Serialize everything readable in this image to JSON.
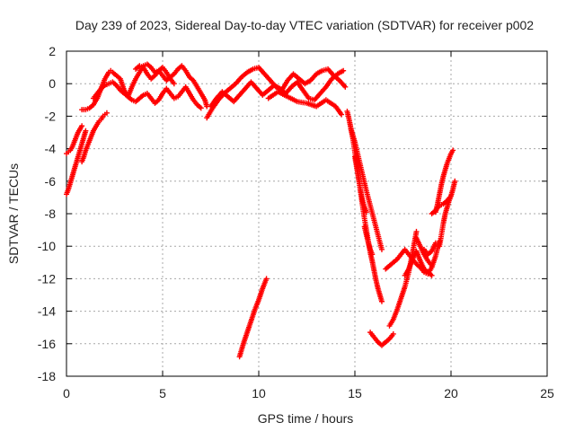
{
  "chart_data": {
    "type": "scatter",
    "title": "Day 239 of 2023, Sidereal Day-to-day VTEC variation (SDTVAR) for receiver p002",
    "xlabel": "GPS time / hours",
    "ylabel": "SDTVAR / TECUs",
    "xlim": [
      0,
      25
    ],
    "ylim": [
      -18,
      2
    ],
    "xticks": [
      0,
      5,
      10,
      15,
      20,
      25
    ],
    "yticks": [
      2,
      0,
      -2,
      -4,
      -6,
      -8,
      -10,
      -12,
      -14,
      -16,
      -18
    ],
    "grid": true,
    "marker": "plus",
    "color": "#ff0000",
    "series": [
      {
        "x": [
          0.0,
          0.1,
          0.2,
          0.3,
          0.4,
          0.5,
          0.6,
          0.7,
          0.8,
          0.9,
          1.0
        ],
        "y": [
          -6.8,
          -6.5,
          -6.1,
          -5.7,
          -5.3,
          -4.9,
          -4.5,
          -4.1,
          -3.7,
          -3.3,
          -2.9
        ]
      },
      {
        "x": [
          0.0,
          0.1,
          0.2,
          0.3,
          0.4,
          0.5,
          0.6,
          0.7,
          0.8
        ],
        "y": [
          -4.3,
          -4.2,
          -4.1,
          -3.9,
          -3.6,
          -3.3,
          -3.0,
          -2.8,
          -2.6
        ]
      },
      {
        "x": [
          0.8,
          0.9,
          1.0,
          1.1,
          1.2,
          1.3,
          1.4,
          1.5,
          1.6,
          1.7,
          1.8,
          1.9,
          2.0,
          2.1
        ],
        "y": [
          -4.8,
          -4.5,
          -4.1,
          -3.8,
          -3.5,
          -3.2,
          -2.9,
          -2.7,
          -2.5,
          -2.3,
          -2.2,
          -2.0,
          -1.9,
          -1.8
        ]
      },
      {
        "x": [
          0.8,
          1.0,
          1.2,
          1.4,
          1.5,
          1.6,
          1.7,
          1.8,
          1.9,
          2.0,
          2.1,
          2.2,
          2.3,
          2.4,
          2.6,
          2.8,
          3.0,
          3.2,
          3.4,
          3.6,
          3.8,
          4.0,
          4.2,
          4.4,
          4.6,
          4.8,
          5.0,
          5.2,
          5.4,
          5.6,
          5.8,
          6.0,
          6.2,
          6.4,
          6.6,
          6.8,
          7.0,
          7.2,
          7.3
        ],
        "y": [
          -1.6,
          -1.6,
          -1.5,
          -1.3,
          -1.1,
          -0.9,
          -0.6,
          -0.3,
          0.0,
          0.3,
          0.5,
          0.7,
          0.8,
          0.7,
          0.5,
          0.3,
          -0.4,
          -0.8,
          -0.2,
          0.3,
          0.7,
          1.1,
          1.2,
          1.0,
          0.7,
          0.8,
          0.5,
          0.2,
          0.4,
          0.6,
          0.9,
          1.1,
          0.8,
          0.4,
          0.2,
          -0.2,
          -0.6,
          -1.0,
          -1.4
        ]
      },
      {
        "x": [
          1.4,
          1.6,
          1.8,
          2.0,
          2.2,
          2.4,
          2.6,
          2.8,
          3.0,
          3.2,
          3.4,
          3.6,
          3.8,
          4.0,
          4.2,
          4.4,
          4.6,
          4.8,
          5.0,
          5.2,
          5.4,
          5.6,
          5.8,
          6.0,
          6.2,
          6.4,
          6.6,
          6.8,
          7.0
        ],
        "y": [
          -0.9,
          -0.6,
          -0.3,
          -0.1,
          0.0,
          0.1,
          -0.1,
          -0.4,
          -0.6,
          -0.8,
          -1.0,
          -1.1,
          -0.9,
          -0.7,
          -0.6,
          -0.9,
          -1.2,
          -1.0,
          -0.6,
          -0.3,
          -0.6,
          -0.9,
          -0.8,
          -0.5,
          -0.2,
          -0.6,
          -1.0,
          -1.3,
          -1.5
        ]
      },
      {
        "x": [
          3.6,
          3.8,
          4.0,
          4.2,
          4.4,
          4.6,
          4.8,
          5.0,
          5.2,
          5.4,
          5.6
        ],
        "y": [
          0.9,
          1.1,
          1.0,
          0.6,
          0.3,
          0.5,
          0.8,
          1.0,
          0.7,
          0.3,
          0.0
        ]
      },
      {
        "x": [
          7.3,
          7.6,
          7.9,
          8.2,
          8.5,
          8.8,
          9.1,
          9.4,
          9.7,
          10.0,
          10.3,
          10.6,
          10.9,
          11.2,
          11.5,
          11.8,
          12.1,
          12.4,
          12.7,
          13.0,
          13.3,
          13.6,
          13.9,
          14.2,
          14.5
        ],
        "y": [
          -2.1,
          -1.5,
          -1.0,
          -0.6,
          -0.3,
          0.0,
          0.4,
          0.7,
          0.9,
          1.0,
          0.6,
          0.2,
          -0.2,
          -0.4,
          0.2,
          0.6,
          0.3,
          0.0,
          0.2,
          0.6,
          0.8,
          0.9,
          0.5,
          0.2,
          -0.2
        ]
      },
      {
        "x": [
          7.5,
          7.8,
          8.1,
          8.4,
          8.7,
          9.0,
          9.3,
          9.6,
          9.9,
          10.2,
          10.5,
          10.8,
          11.1,
          11.4,
          11.7,
          12.0,
          12.3,
          12.6,
          12.9,
          13.2,
          13.5,
          13.8,
          14.1,
          14.4
        ],
        "y": [
          -1.4,
          -0.9,
          -0.5,
          -0.8,
          -1.1,
          -0.7,
          -0.3,
          0.1,
          -0.3,
          -0.7,
          -0.4,
          -0.1,
          -0.3,
          -0.6,
          -0.2,
          0.1,
          -0.4,
          -0.9,
          -1.0,
          -0.6,
          -0.2,
          0.3,
          0.6,
          0.8
        ]
      },
      {
        "x": [
          10.5,
          11.0,
          11.5,
          12.0,
          12.5,
          13.0,
          13.5,
          14.0,
          14.3
        ],
        "y": [
          -0.9,
          -0.5,
          -0.8,
          -1.1,
          -1.2,
          -1.4,
          -1.0,
          -1.4,
          -1.9
        ]
      },
      {
        "x": [
          9.0,
          9.2,
          9.4,
          9.6,
          9.8,
          10.0,
          10.2,
          10.4
        ],
        "y": [
          -16.8,
          -16.0,
          -15.3,
          -14.6,
          -13.9,
          -13.3,
          -12.6,
          -12.0
        ]
      },
      {
        "x": [
          14.6,
          14.7,
          14.8,
          14.9,
          15.0,
          15.1,
          15.2,
          15.3,
          15.4,
          15.5,
          15.6,
          15.7,
          15.8,
          15.9,
          16.0,
          16.1,
          16.2,
          16.3,
          16.4
        ],
        "y": [
          -1.7,
          -2.2,
          -2.8,
          -3.4,
          -4.2,
          -5.0,
          -5.8,
          -6.7,
          -7.5,
          -8.3,
          -9.0,
          -9.7,
          -10.4,
          -10.9,
          -11.5,
          -12.1,
          -12.6,
          -13.0,
          -13.4
        ]
      },
      {
        "x": [
          14.8,
          15.0,
          15.2,
          15.4,
          15.6,
          15.8,
          16.0,
          16.2,
          16.4
        ],
        "y": [
          -2.8,
          -3.6,
          -4.6,
          -5.6,
          -6.6,
          -7.5,
          -8.4,
          -9.3,
          -10.2
        ]
      },
      {
        "x": [
          15.0,
          15.1,
          15.2,
          15.3,
          15.4,
          15.5,
          15.6
        ],
        "y": [
          -4.5,
          -5.2,
          -5.9,
          -6.6,
          -7.2,
          -7.6,
          -7.9
        ]
      },
      {
        "x": [
          15.5,
          15.6,
          15.7,
          15.8,
          15.9
        ],
        "y": [
          -8.8,
          -9.3,
          -9.8,
          -10.2,
          -10.5
        ]
      },
      {
        "x": [
          15.8,
          16.0,
          16.2,
          16.4,
          16.6,
          16.8,
          17.0
        ],
        "y": [
          -15.3,
          -15.6,
          -15.9,
          -16.1,
          -15.9,
          -15.7,
          -15.4
        ]
      },
      {
        "x": [
          16.6,
          16.8,
          17.0,
          17.2,
          17.4,
          17.6,
          17.8,
          18.0,
          18.2,
          18.4,
          18.6,
          18.8,
          19.0,
          19.2,
          19.4
        ],
        "y": [
          -11.4,
          -11.2,
          -11.0,
          -10.8,
          -10.5,
          -10.2,
          -10.5,
          -10.8,
          -11.1,
          -11.3,
          -11.6,
          -11.7,
          -11.3,
          -10.6,
          -9.7
        ]
      },
      {
        "x": [
          16.8,
          17.0,
          17.2,
          17.4,
          17.6,
          17.8,
          18.0,
          18.2
        ],
        "y": [
          -14.9,
          -14.5,
          -13.9,
          -13.2,
          -12.5,
          -11.6,
          -10.4,
          -9.1
        ]
      },
      {
        "x": [
          17.6,
          17.8,
          18.0,
          18.2,
          18.4,
          18.6,
          18.8,
          19.0
        ],
        "y": [
          -11.8,
          -11.4,
          -10.8,
          -10.3,
          -10.9,
          -11.4,
          -11.6,
          -11.8
        ]
      },
      {
        "x": [
          18.2,
          18.4,
          18.6,
          18.8,
          19.0
        ],
        "y": [
          -9.5,
          -10.0,
          -10.5,
          -10.9,
          -11.2
        ]
      },
      {
        "x": [
          19.2,
          19.3,
          19.4,
          19.5,
          19.6,
          19.7,
          19.8,
          19.9,
          20.0,
          20.1
        ],
        "y": [
          -7.9,
          -7.4,
          -6.8,
          -6.2,
          -5.7,
          -5.3,
          -4.9,
          -4.6,
          -4.3,
          -4.1
        ]
      },
      {
        "x": [
          19.4,
          19.5,
          19.6,
          19.7,
          19.8,
          19.9,
          20.0,
          20.1,
          20.2
        ],
        "y": [
          -10.0,
          -9.3,
          -8.6,
          -8.0,
          -7.6,
          -7.2,
          -6.9,
          -6.5,
          -6.0
        ]
      },
      {
        "x": [
          19.0,
          19.2,
          19.4,
          19.6,
          19.8,
          20.0
        ],
        "y": [
          -8.0,
          -7.8,
          -7.5,
          -7.4,
          -7.2,
          -6.9
        ]
      },
      {
        "x": [
          18.6,
          18.8,
          19.0,
          19.2
        ],
        "y": [
          -10.2,
          -10.5,
          -10.3,
          -9.8
        ]
      }
    ]
  }
}
